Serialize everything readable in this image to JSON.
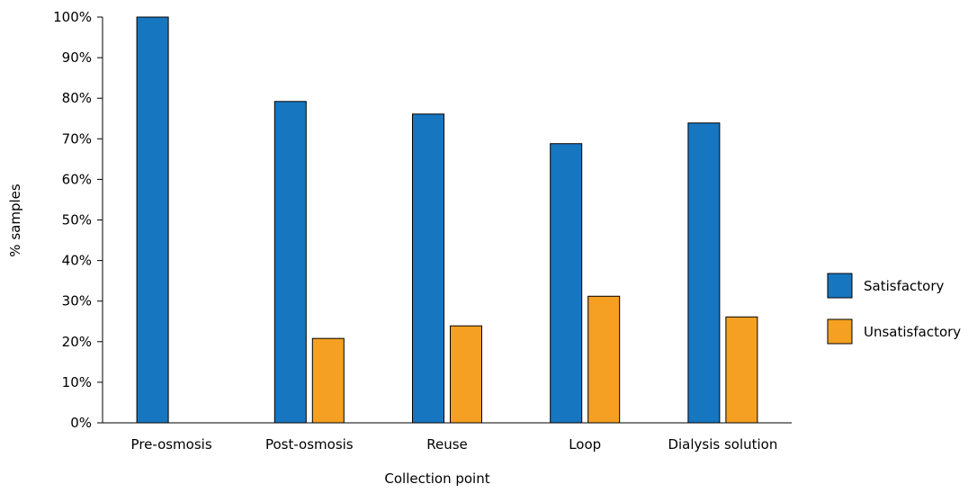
{
  "chart_data": {
    "type": "bar",
    "title": "",
    "xlabel": "Collection point",
    "ylabel": "% samples",
    "categories": [
      "Pre-osmosis",
      "Post-osmosis",
      "Reuse",
      "Loop",
      "Dialysis solution"
    ],
    "series": [
      {
        "name": "Satisfactory",
        "values": [
          100,
          79.2,
          76.1,
          68.8,
          73.9
        ],
        "color": "#1776c0"
      },
      {
        "name": "Unsatisfactory",
        "values": [
          0,
          20.8,
          23.9,
          31.2,
          26.1
        ],
        "color": "#f5a023"
      }
    ],
    "ylim": [
      0,
      100
    ],
    "yticks": [
      "0%",
      "10%",
      "20%",
      "30%",
      "40%",
      "50%",
      "60%",
      "70%",
      "80%",
      "90%",
      "100%"
    ],
    "grid": false,
    "legend_position": "right"
  }
}
